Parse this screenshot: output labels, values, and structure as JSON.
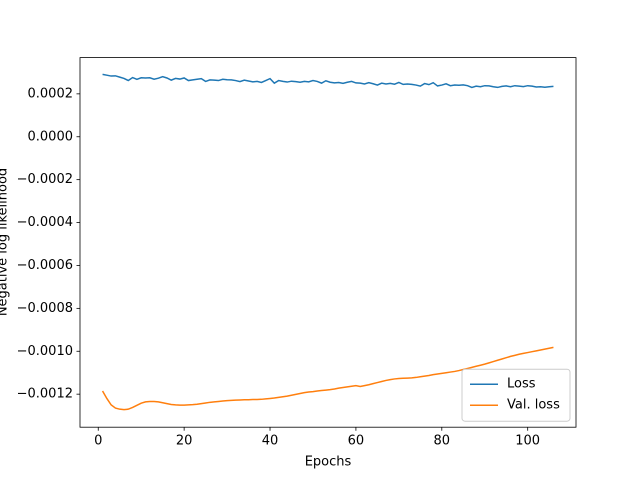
{
  "chart_data": {
    "type": "line",
    "xlabel": "Epochs",
    "ylabel": "Negative log likelihood",
    "x": [
      1,
      2,
      3,
      4,
      5,
      6,
      7,
      8,
      9,
      10,
      11,
      12,
      13,
      14,
      15,
      16,
      17,
      18,
      19,
      20,
      21,
      22,
      23,
      24,
      25,
      26,
      27,
      28,
      29,
      30,
      31,
      32,
      33,
      34,
      35,
      36,
      37,
      38,
      39,
      40,
      41,
      42,
      43,
      44,
      45,
      46,
      47,
      48,
      49,
      50,
      51,
      52,
      53,
      54,
      55,
      56,
      57,
      58,
      59,
      60,
      61,
      62,
      63,
      64,
      65,
      66,
      67,
      68,
      69,
      70,
      71,
      72,
      73,
      74,
      75,
      76,
      77,
      78,
      79,
      80,
      81,
      82,
      83,
      84,
      85,
      86,
      87,
      88,
      89,
      90,
      91,
      92,
      93,
      94,
      95,
      96,
      97,
      98,
      99,
      100,
      101,
      102,
      103,
      104,
      105,
      106
    ],
    "series": [
      {
        "name": "Loss",
        "color": "#1f77b4",
        "values": [
          0.000291,
          0.000287,
          0.000283,
          0.000284,
          0.000278,
          0.000272,
          0.000262,
          0.000276,
          0.000268,
          0.000275,
          0.000274,
          0.000275,
          0.000268,
          0.000273,
          0.00028,
          0.000274,
          0.000264,
          0.000272,
          0.000269,
          0.000274,
          0.000262,
          0.000265,
          0.000268,
          0.000271,
          0.000258,
          0.000265,
          0.000264,
          0.000262,
          0.000268,
          0.000266,
          0.000265,
          0.000262,
          0.000257,
          0.000264,
          0.00026,
          0.000256,
          0.000258,
          0.000253,
          0.000262,
          0.000271,
          0.00025,
          0.000262,
          0.000258,
          0.000255,
          0.000259,
          0.000257,
          0.000254,
          0.000258,
          0.000256,
          0.000262,
          0.000258,
          0.00025,
          0.000261,
          0.000254,
          0.000251,
          0.000253,
          0.000249,
          0.000254,
          0.000258,
          0.000251,
          0.00025,
          0.000246,
          0.000252,
          0.000247,
          0.000241,
          0.00025,
          0.000246,
          0.000249,
          0.000245,
          0.000253,
          0.000244,
          0.000246,
          0.000244,
          0.000241,
          0.000236,
          0.000248,
          0.000243,
          0.000252,
          0.000237,
          0.000241,
          0.000247,
          0.000238,
          0.000241,
          0.00024,
          0.000242,
          0.000238,
          0.00023,
          0.000236,
          0.000233,
          0.000238,
          0.000237,
          0.000233,
          0.00023,
          0.000235,
          0.000237,
          0.000233,
          0.000238,
          0.000236,
          0.000234,
          0.000238,
          0.000236,
          0.000232,
          0.000233,
          0.000231,
          0.000233,
          0.000235
        ]
      },
      {
        "name": "Val. loss",
        "color": "#ff7f0e",
        "values": [
          -0.001185,
          -0.00122,
          -0.00125,
          -0.001265,
          -0.00127,
          -0.001272,
          -0.00127,
          -0.001262,
          -0.001252,
          -0.001242,
          -0.001236,
          -0.001234,
          -0.001234,
          -0.001236,
          -0.00124,
          -0.001244,
          -0.001248,
          -0.00125,
          -0.001251,
          -0.001251,
          -0.00125,
          -0.001249,
          -0.001247,
          -0.001244,
          -0.001241,
          -0.001238,
          -0.001236,
          -0.001234,
          -0.001232,
          -0.00123,
          -0.001229,
          -0.001228,
          -0.001227,
          -0.001226,
          -0.001226,
          -0.001225,
          -0.001225,
          -0.001224,
          -0.001222,
          -0.00122,
          -0.001218,
          -0.001215,
          -0.001212,
          -0.001209,
          -0.001205,
          -0.001201,
          -0.001197,
          -0.001193,
          -0.00119,
          -0.001188,
          -0.001185,
          -0.001183,
          -0.001181,
          -0.001179,
          -0.001176,
          -0.001172,
          -0.001169,
          -0.001166,
          -0.001163,
          -0.00116,
          -0.001164,
          -0.00116,
          -0.001156,
          -0.001151,
          -0.001146,
          -0.001141,
          -0.001136,
          -0.001132,
          -0.001129,
          -0.001127,
          -0.001126,
          -0.001125,
          -0.001124,
          -0.001122,
          -0.001119,
          -0.001116,
          -0.001113,
          -0.001109,
          -0.001106,
          -0.001103,
          -0.0011,
          -0.001097,
          -0.001094,
          -0.00109,
          -0.001085,
          -0.00108,
          -0.001075,
          -0.00107,
          -0.001065,
          -0.00106,
          -0.001054,
          -0.001048,
          -0.001042,
          -0.001036,
          -0.00103,
          -0.001024,
          -0.001019,
          -0.001014,
          -0.00101,
          -0.001006,
          -0.001002,
          -0.000998,
          -0.000994,
          -0.00099,
          -0.000986,
          -0.000982
        ]
      }
    ],
    "xlim": [
      -4.25,
      111.25
    ],
    "xticks": [
      0,
      20,
      40,
      60,
      80,
      100
    ],
    "ylim": [
      -0.001354,
      0.000369
    ],
    "yticks": [
      {
        "value": -0.0012,
        "label": "−0.0012"
      },
      {
        "value": -0.001,
        "label": "−0.0010"
      },
      {
        "value": -0.0008,
        "label": "−0.0008"
      },
      {
        "value": -0.0006,
        "label": "−0.0006"
      },
      {
        "value": -0.0004,
        "label": "−0.0004"
      },
      {
        "value": -0.0002,
        "label": "−0.0002"
      },
      {
        "value": 0,
        "label": "0.0000"
      },
      0.0002
    ],
    "grid": false,
    "legend": "lower right"
  }
}
